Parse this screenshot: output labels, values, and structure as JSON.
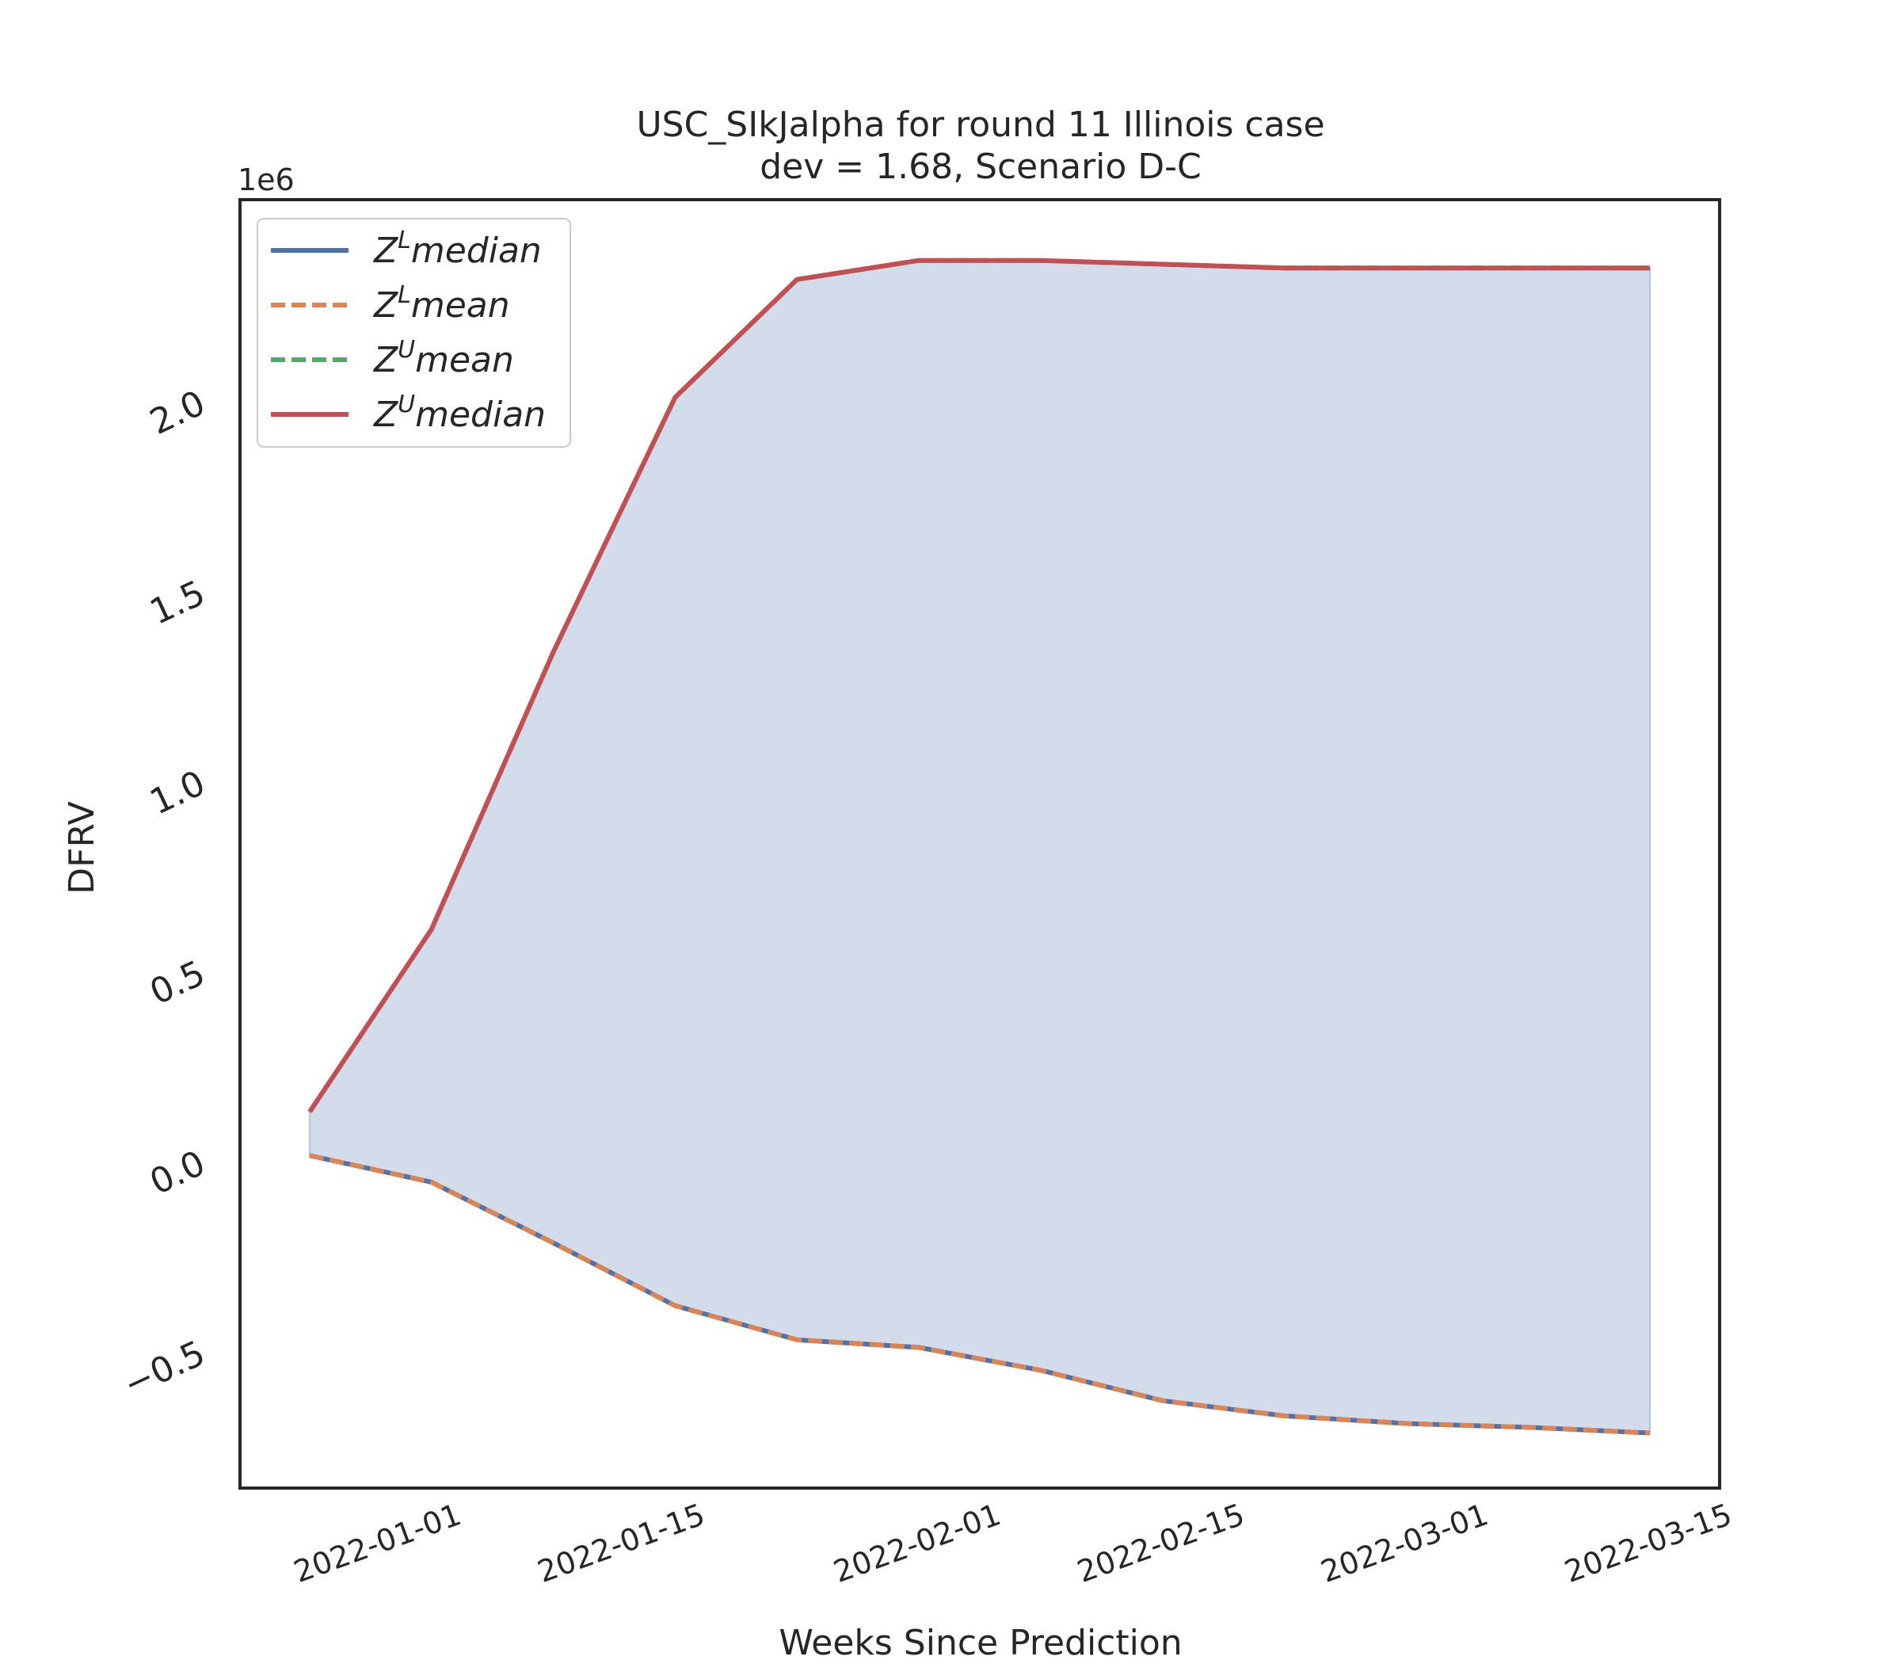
{
  "chart_data": {
    "type": "area",
    "title_line1": "USC_SIkJalpha for round 11 Illinois case",
    "title_line2": "dev = 1.68, Scenario D-C",
    "xlabel": "Weeks Since Prediction",
    "ylabel": "DFRV",
    "y_offset_label": "1e6",
    "y_scale": 1000000,
    "ylim": [
      -0.87,
      2.52
    ],
    "xlim": [
      "2021-12-20",
      "2022-03-15"
    ],
    "x_ticks": [
      "2022-01-01",
      "2022-01-15",
      "2022-02-01",
      "2022-02-15",
      "2022-03-01",
      "2022-03-15"
    ],
    "y_ticks": [
      -0.5,
      0.0,
      0.5,
      1.0,
      1.5,
      2.0
    ],
    "y_tick_labels": [
      "−0.5",
      "0.0",
      "0.5",
      "1.0",
      "1.5",
      "2.0"
    ],
    "legend_placement": "upper-left",
    "x": [
      "2021-12-24",
      "2021-12-31",
      "2022-01-07",
      "2022-01-14",
      "2022-01-21",
      "2022-01-28",
      "2022-02-04",
      "2022-02-11",
      "2022-02-18",
      "2022-02-25",
      "2022-03-04",
      "2022-03-11"
    ],
    "series": [
      {
        "name": "Z^L median",
        "legend_main": "Z",
        "legend_sup": "L",
        "legend_tail": "median",
        "color": "#4c72b0",
        "dash": "solid",
        "values": [
          0.005,
          -0.065,
          -0.225,
          -0.39,
          -0.48,
          -0.5,
          -0.56,
          -0.64,
          -0.68,
          -0.7,
          -0.71,
          -0.725
        ]
      },
      {
        "name": "Z^L mean",
        "legend_main": "Z",
        "legend_sup": "L",
        "legend_tail": "mean",
        "color": "#dd8452",
        "dash": "dashed",
        "values": [
          0.005,
          -0.065,
          -0.225,
          -0.39,
          -0.48,
          -0.5,
          -0.56,
          -0.64,
          -0.68,
          -0.7,
          -0.71,
          -0.725
        ]
      },
      {
        "name": "Z^U mean",
        "legend_main": "Z",
        "legend_sup": "U",
        "legend_tail": "mean",
        "color": "#55a868",
        "dash": "dashed",
        "values": [
          0.12,
          0.6,
          1.33,
          2.0,
          2.31,
          2.36,
          2.36,
          2.35,
          2.34,
          2.34,
          2.34,
          2.34
        ]
      },
      {
        "name": "Z^U median",
        "legend_main": "Z",
        "legend_sup": "U",
        "legend_tail": "median",
        "color": "#c44e52",
        "dash": "solid",
        "values": [
          0.12,
          0.6,
          1.33,
          2.0,
          2.31,
          2.36,
          2.36,
          2.35,
          2.34,
          2.34,
          2.34,
          2.34
        ]
      }
    ],
    "fill_color": "#4c72b0",
    "fill_opacity": 0.25
  }
}
